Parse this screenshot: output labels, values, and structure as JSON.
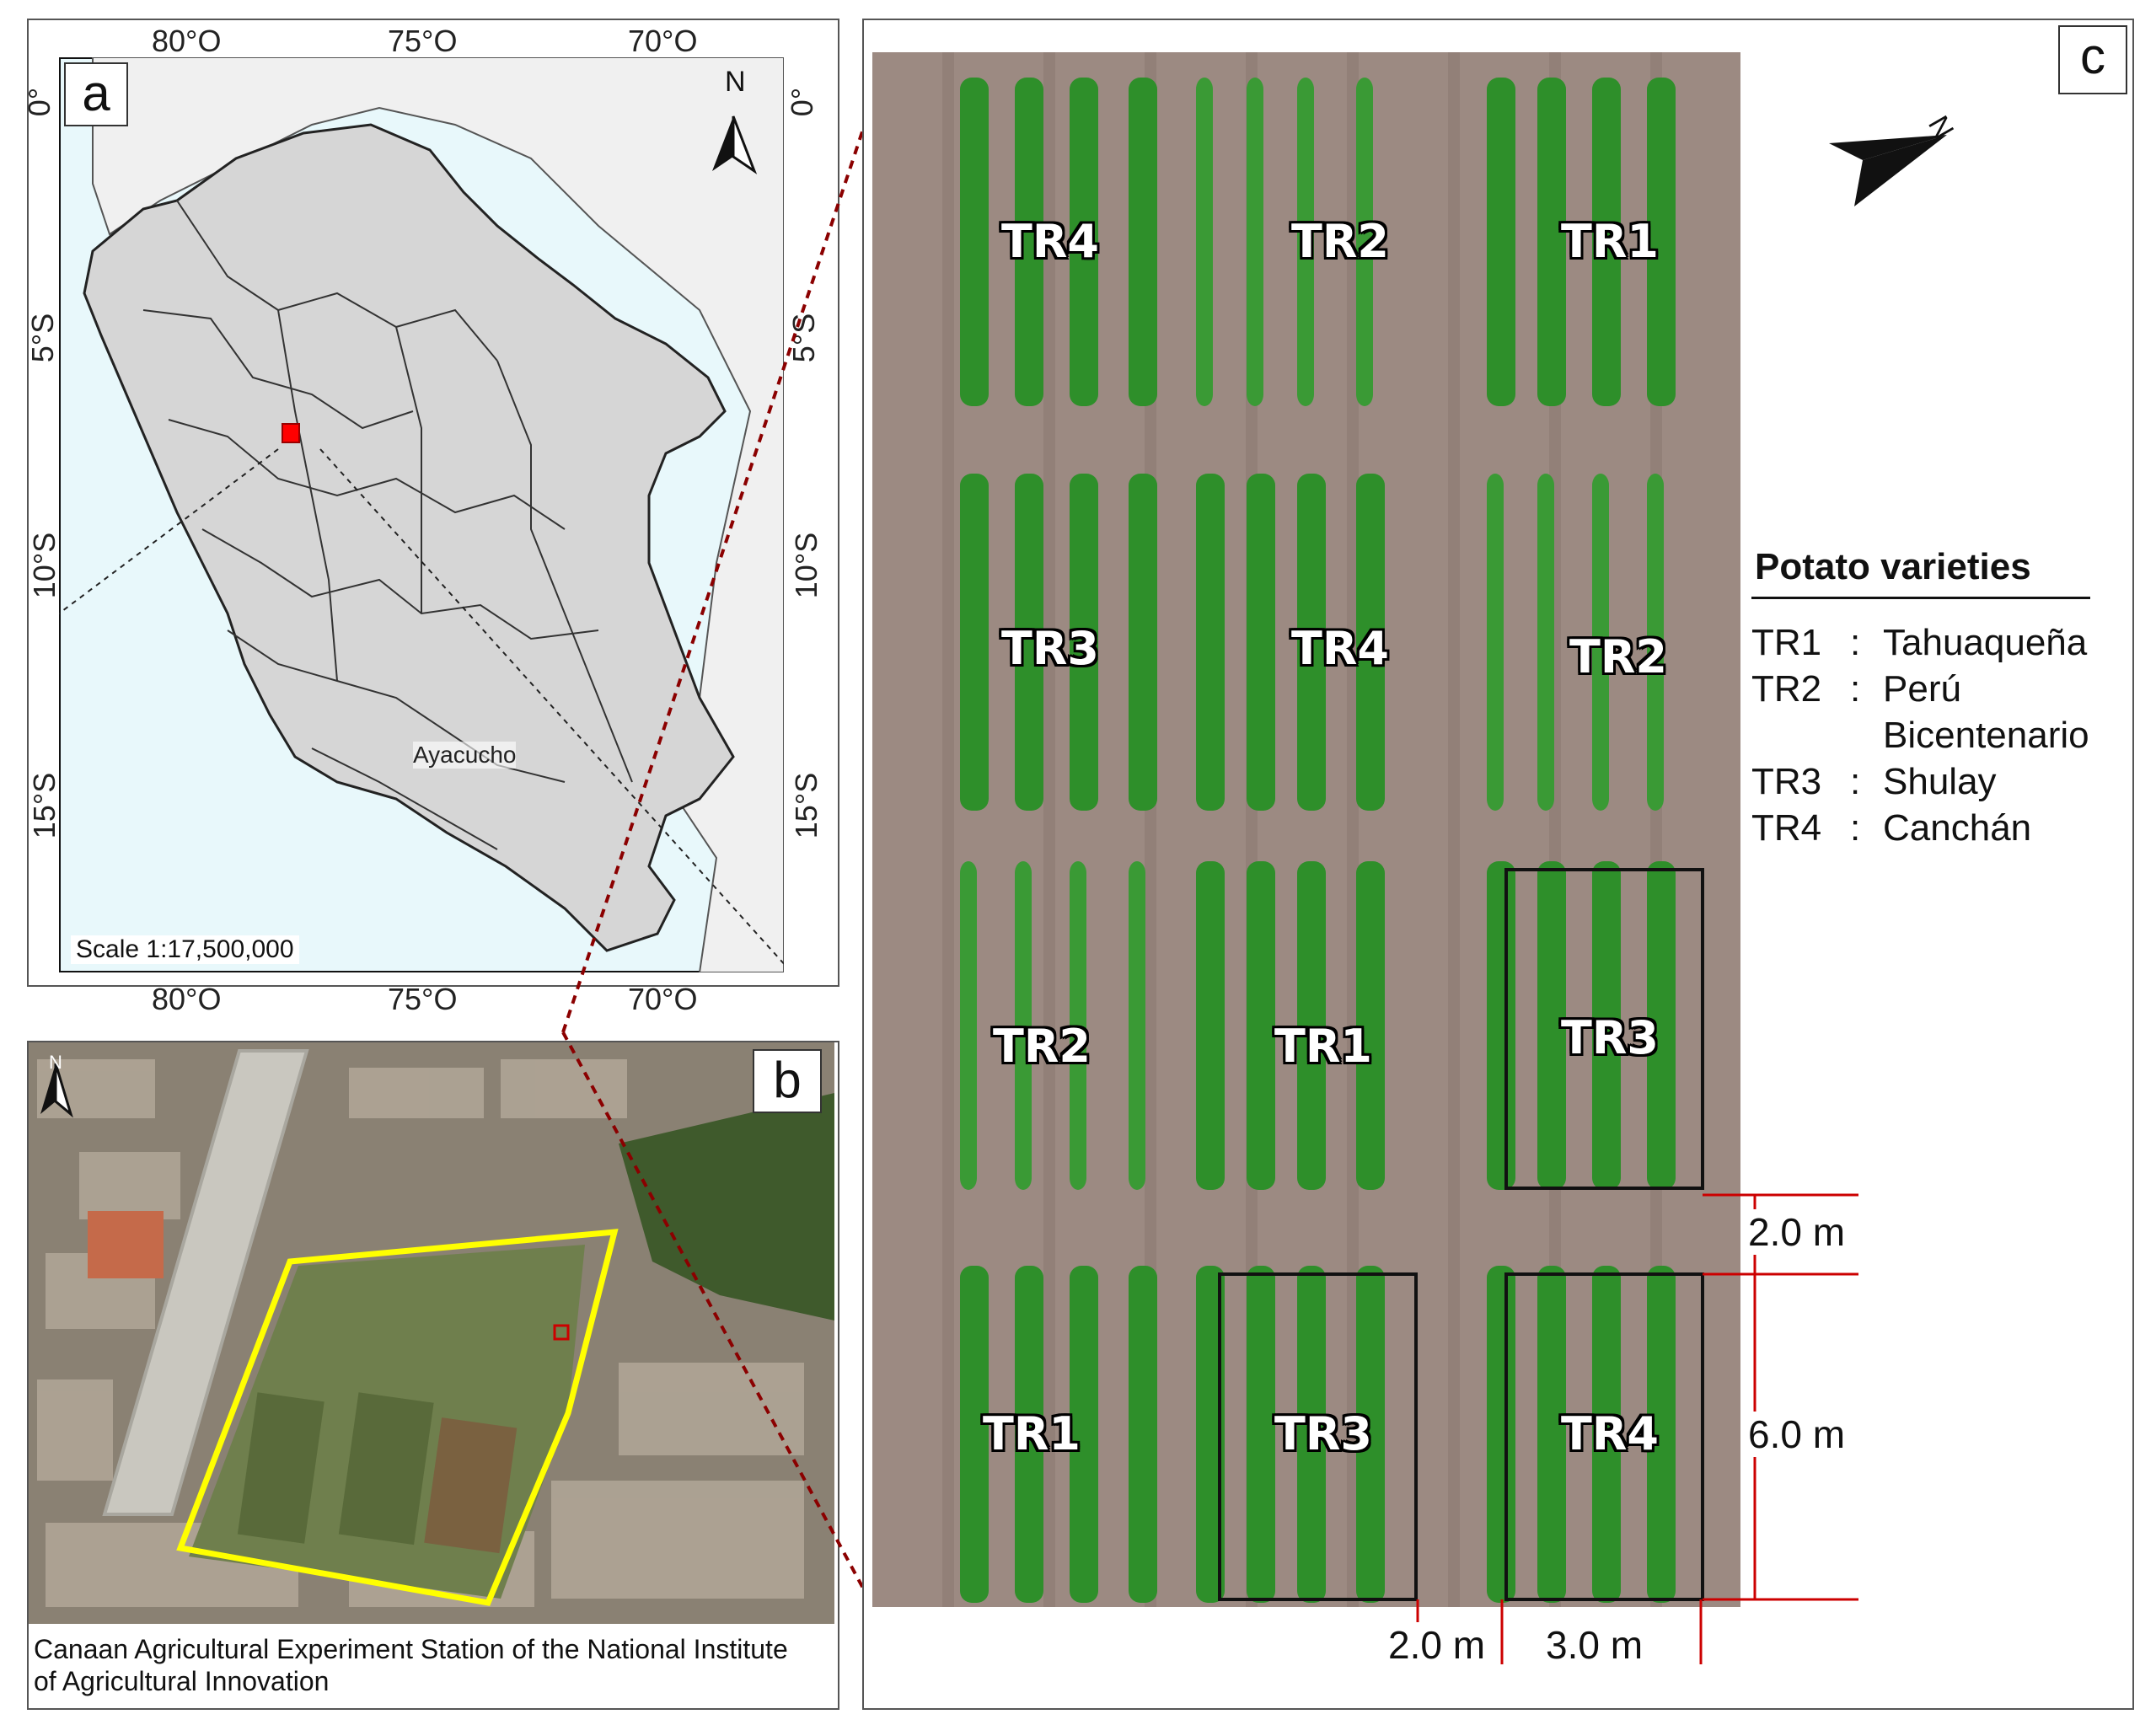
{
  "panel_a": {
    "tag": "a",
    "lon_top": [
      "80°O",
      "75°O",
      "70°O"
    ],
    "lon_bottom": [
      "80°O",
      "75°O",
      "70°O"
    ],
    "lat_left": [
      "0°",
      "5°S",
      "10°S",
      "15°S"
    ],
    "lat_right": [
      "0°",
      "5°S",
      "10°S",
      "15°S"
    ],
    "north": "N",
    "city": "Ayacucho",
    "scale": "Scale 1:17,500,000",
    "colors": {
      "sea": "#e8f8fb",
      "country": "#d6d6d6",
      "neighbors": "#f0f0f0",
      "site": "#ff0000"
    }
  },
  "panel_b": {
    "tag": "b",
    "north": "N",
    "caption": "Canaan Agricultural Experiment Station of the National Institute of Agricultural Innovation",
    "colors": {
      "boundary": "#ffff00",
      "site": "#cc0000"
    }
  },
  "panel_c": {
    "tag": "c",
    "north": "N",
    "plots": [
      [
        "TR4",
        "TR2",
        "TR1"
      ],
      [
        "TR3",
        "TR4",
        "TR2"
      ],
      [
        "TR2",
        "TR1",
        "TR3"
      ],
      [
        "TR1",
        "TR3",
        "TR4"
      ]
    ],
    "dims": {
      "gap_row": "2.0 m",
      "plot_len": "6.0 m",
      "gap_col": "2.0 m",
      "plot_w": "3.0 m"
    },
    "colors": {
      "soil": "#9c8a82",
      "plant": "#2e8f2a",
      "dim_line": "#cc0000"
    }
  },
  "legend": {
    "title": "Potato varieties",
    "items": [
      {
        "code": "TR1",
        "sep": ":",
        "name": "Tahuaqueña"
      },
      {
        "code": "TR2",
        "sep": ":",
        "name": "Perú"
      },
      {
        "code": "",
        "sep": "",
        "name": "Bicentenario"
      },
      {
        "code": "TR3",
        "sep": ":",
        "name": "Shulay"
      },
      {
        "code": "TR4",
        "sep": ":",
        "name": "Canchán"
      }
    ]
  }
}
